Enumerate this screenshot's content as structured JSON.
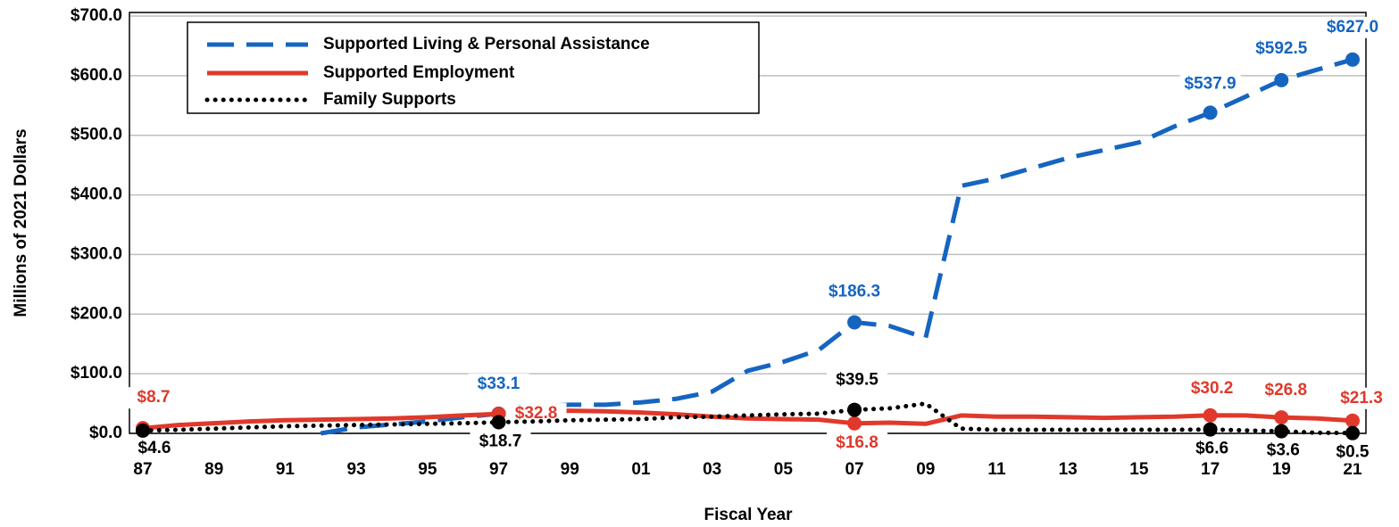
{
  "chart_data": {
    "type": "line",
    "y_label": "Millions of 2021 Dollars",
    "x_label": "Fiscal Year",
    "categories": [
      "87",
      null,
      "89",
      null,
      "91",
      null,
      "93",
      null,
      "95",
      null,
      "97",
      null,
      "99",
      null,
      "01",
      null,
      "03",
      null,
      "05",
      null,
      "07",
      null,
      "09",
      null,
      "11",
      null,
      "13",
      null,
      "15",
      null,
      "17",
      null,
      "19",
      null,
      "21"
    ],
    "ylim": [
      0,
      700
    ],
    "yticks": [
      {
        "value": 0,
        "label": "$0.0"
      },
      {
        "value": 100,
        "label": "$100.0"
      },
      {
        "value": 200,
        "label": "$200.0"
      },
      {
        "value": 300,
        "label": "$300.0"
      },
      {
        "value": 400,
        "label": "$400.0"
      },
      {
        "value": 500,
        "label": "$500.0"
      },
      {
        "value": 600,
        "label": "$600.0"
      },
      {
        "value": 700,
        "label": "$700.0"
      }
    ],
    "grid": true,
    "legend": "upper left",
    "series": [
      {
        "name": "Supported Living & Personal Assistance",
        "color": "#1565c0",
        "style": "dashed",
        "values": [
          null,
          null,
          null,
          null,
          null,
          0,
          10,
          15,
          20,
          27,
          33.1,
          45,
          48,
          48,
          52,
          58,
          70,
          105,
          120,
          140,
          186.3,
          180,
          160,
          415,
          428,
          445,
          462,
          475,
          488,
          515,
          537.9,
          565,
          592.5,
          610,
          627.0
        ],
        "value_labels": [
          null,
          null,
          null,
          null,
          null,
          null,
          null,
          null,
          null,
          null,
          "$33.1",
          null,
          null,
          null,
          null,
          null,
          null,
          null,
          null,
          null,
          "$186.3",
          null,
          null,
          null,
          null,
          null,
          null,
          null,
          null,
          null,
          "$537.9",
          null,
          "$592.5",
          null,
          "$627.0"
        ]
      },
      {
        "name": "Supported Employment",
        "color": "#e0392b",
        "style": "solid",
        "values": [
          8.7,
          14,
          17,
          20,
          22,
          23,
          24,
          25,
          27,
          30,
          32.8,
          38,
          38,
          37,
          35,
          32,
          28,
          25,
          24,
          23,
          16.8,
          18,
          16,
          30,
          28,
          28,
          27,
          26,
          27,
          28,
          30.2,
          30,
          26.8,
          25,
          21.3
        ],
        "value_labels": [
          "$8.7",
          null,
          null,
          null,
          null,
          null,
          null,
          null,
          null,
          null,
          "$32.8",
          null,
          null,
          null,
          null,
          null,
          null,
          null,
          null,
          null,
          "$16.8",
          null,
          null,
          null,
          null,
          null,
          null,
          null,
          null,
          null,
          "$30.2",
          null,
          "$26.8",
          null,
          "$21.3"
        ]
      },
      {
        "name": "Family Supports",
        "color": "#000000",
        "style": "dotted",
        "values": [
          4.6,
          6,
          8,
          10,
          12,
          13,
          14,
          15,
          16,
          17,
          18.7,
          20,
          22,
          23,
          24,
          27,
          28,
          30,
          32,
          33,
          39.5,
          42,
          50,
          8,
          6,
          6,
          6,
          6,
          6,
          6,
          6.6,
          5,
          3.6,
          1,
          0.5
        ],
        "value_labels": [
          "$4.6",
          null,
          null,
          null,
          null,
          null,
          null,
          null,
          null,
          null,
          "$18.7",
          null,
          null,
          null,
          null,
          null,
          null,
          null,
          null,
          null,
          "$39.5",
          null,
          null,
          null,
          null,
          null,
          null,
          null,
          null,
          null,
          "$6.6",
          null,
          "$3.6",
          null,
          "$0.5"
        ]
      }
    ]
  }
}
